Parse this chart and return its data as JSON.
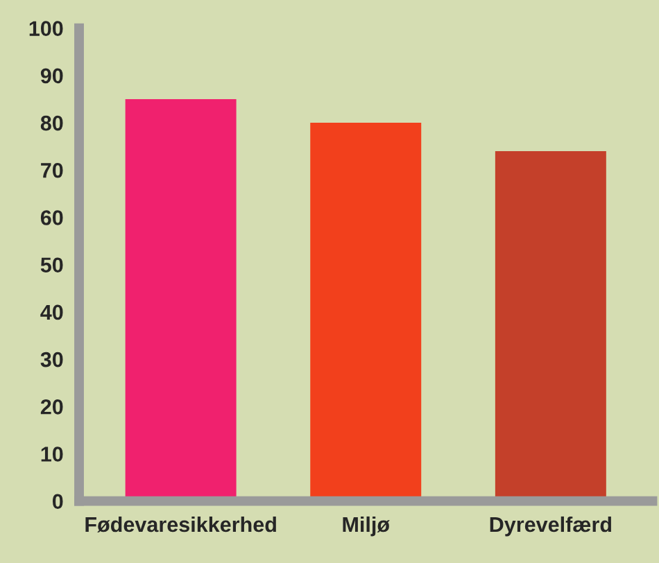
{
  "chart_data": {
    "type": "bar",
    "categories": [
      "Fødevaresikkerhed",
      "Miljø",
      "Dyrevelfærd"
    ],
    "values": [
      85,
      80,
      74
    ],
    "colors": [
      "#f0216e",
      "#f2401c",
      "#c4402a"
    ],
    "ylim": [
      0,
      100
    ],
    "yticks": [
      0,
      10,
      20,
      30,
      40,
      50,
      60,
      70,
      80,
      90,
      100
    ],
    "grid": false
  }
}
